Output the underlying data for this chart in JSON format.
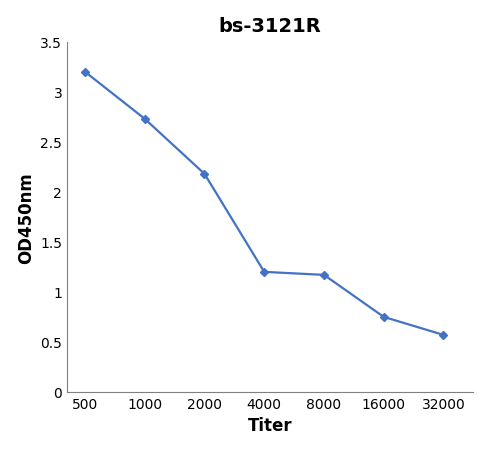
{
  "title": "bs-3121R",
  "xlabel": "Titer",
  "ylabel": "OD450nm",
  "x_positions": [
    0,
    1,
    2,
    3,
    4,
    5,
    6
  ],
  "x_labels": [
    "500",
    "1000",
    "2000",
    "4000",
    "8000",
    "16000",
    "32000"
  ],
  "y": [
    3.2,
    2.73,
    2.18,
    1.2,
    1.17,
    0.75,
    0.57
  ],
  "ylim": [
    0,
    3.5
  ],
  "xlim": [
    -0.3,
    6.5
  ],
  "line_color": "#4472C4",
  "marker": "D",
  "marker_size": 4,
  "line_width": 1.6,
  "title_fontsize": 14,
  "axis_label_fontsize": 12,
  "tick_fontsize": 10,
  "yticks": [
    0,
    0.5,
    1.0,
    1.5,
    2.0,
    2.5,
    3.0,
    3.5
  ],
  "background_color": "#ffffff",
  "plot_bg_color": "#ffffff"
}
